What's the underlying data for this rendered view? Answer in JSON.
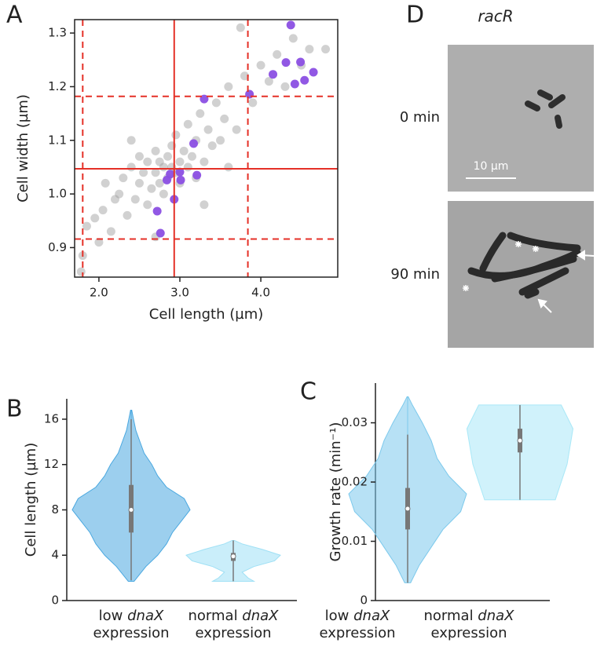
{
  "chart_data": [
    {
      "type": "scatter",
      "panel_label": "A",
      "xlabel": "Cell length (µm)",
      "ylabel": "Cell width (µm)",
      "xlim": [
        1.7,
        4.95
      ],
      "ylim": [
        0.845,
        1.325
      ],
      "xticks": [
        {
          "value": 2,
          "label": "2.0"
        },
        {
          "value": 3,
          "label": "3.0"
        },
        {
          "value": 4,
          "label": "4.0"
        }
      ],
      "yticks": [
        0.9,
        {
          "value": 1,
          "label": "1.0"
        },
        1.1,
        1.2,
        1.3
      ],
      "line_color": "#e53027",
      "vlines": [
        2.93
      ],
      "vlines_dashed": [
        1.8,
        3.84
      ],
      "hlines": [
        1.047
      ],
      "hlines_dashed": [
        0.916,
        1.182
      ],
      "series": [
        {
          "color": "#9a9a9a",
          "x": [
            1.78,
            1.8,
            1.85,
            1.95,
            2.05,
            2.08,
            2.15,
            2.2,
            2.25,
            2.3,
            2.35,
            2.4,
            2.45,
            2.5,
            2.5,
            2.55,
            2.6,
            2.6,
            2.65,
            2.7,
            2.7,
            2.75,
            2.75,
            2.8,
            2.8,
            2.85,
            2.85,
            2.9,
            2.9,
            2.95,
            2.95,
            3.0,
            3.0,
            3.05,
            3.1,
            3.1,
            3.15,
            3.2,
            3.2,
            3.25,
            3.3,
            3.35,
            3.4,
            3.45,
            3.5,
            3.55,
            3.6,
            3.7,
            3.75,
            3.8,
            3.9,
            4.0,
            4.1,
            4.2,
            4.3,
            4.4,
            4.5,
            4.6,
            4.8,
            2.0,
            2.7,
            3.3,
            2.4,
            3.6
          ],
          "y": [
            0.855,
            0.885,
            0.94,
            0.955,
            0.97,
            1.02,
            0.93,
            0.99,
            1.0,
            1.03,
            0.96,
            1.05,
            0.99,
            1.02,
            1.07,
            1.04,
            0.98,
            1.06,
            1.01,
            1.04,
            1.08,
            1.02,
            1.06,
            1.05,
            1.0,
            1.07,
            1.03,
            1.05,
            1.09,
            1.04,
            1.11,
            1.06,
            1.02,
            1.08,
            1.05,
            1.13,
            1.07,
            1.03,
            1.1,
            1.15,
            1.06,
            1.12,
            1.09,
            1.17,
            1.1,
            1.14,
            1.2,
            1.12,
            1.31,
            1.22,
            1.17,
            1.24,
            1.21,
            1.26,
            1.2,
            1.29,
            1.24,
            1.27,
            1.27,
            0.91,
            0.92,
            0.98,
            1.1,
            1.05
          ]
        },
        {
          "color": "#8b4fe3",
          "x": [
            4.37,
            4.31,
            4.49,
            4.65,
            4.15,
            4.54,
            4.42,
            3.86,
            3.3,
            3.17,
            3.0,
            2.88,
            2.84,
            3.01,
            3.21,
            2.93,
            2.72,
            2.76
          ],
          "y": [
            1.315,
            1.245,
            1.246,
            1.227,
            1.223,
            1.212,
            1.205,
            1.186,
            1.177,
            1.094,
            1.041,
            1.037,
            1.026,
            1.026,
            1.035,
            0.99,
            0.968,
            0.927
          ]
        }
      ]
    },
    {
      "type": "violin",
      "panel_label": "B",
      "ylabel": "Cell length (µm)",
      "italic": "dnaX",
      "categories": [
        "low dnaX expression",
        "normal dnaX expression"
      ],
      "ylim": [
        0,
        17.8
      ],
      "yticks": [
        0,
        4,
        8,
        12,
        16
      ],
      "violins": [
        {
          "color": "#4aa8e0",
          "density_y": [
            1.7,
            3,
            4,
            5,
            6,
            7,
            8,
            9,
            10,
            11,
            12,
            13,
            14,
            15,
            16,
            16.8
          ],
          "density_width": [
            0.05,
            0.25,
            0.45,
            0.6,
            0.7,
            0.85,
            1.0,
            0.9,
            0.6,
            0.45,
            0.35,
            0.22,
            0.15,
            0.08,
            0.04,
            0.01
          ],
          "min": 1.8,
          "q1": 6,
          "median": 8,
          "q3": 10.2,
          "max": 16
        },
        {
          "color": "#9fe0f5",
          "density_y": [
            1.7,
            2.0,
            2.5,
            3,
            3.5,
            4,
            4.5,
            5,
            5.3
          ],
          "density_width": [
            0.35,
            0.25,
            0.15,
            0.35,
            0.7,
            0.8,
            0.5,
            0.15,
            0.02
          ],
          "min": 1.7,
          "q1": 3.5,
          "median": 3.9,
          "q3": 4.2,
          "max": 5.3
        }
      ]
    },
    {
      "type": "violin",
      "panel_label": "C",
      "ylabel": "Growth rate (min⁻¹)",
      "italic": "dnaX",
      "categories": [
        "low dnaX expression",
        "normal dnaX expression"
      ],
      "ylim": [
        0,
        0.0367
      ],
      "yticks": [
        0,
        0.01,
        0.02,
        0.03
      ],
      "violins": [
        {
          "color": "#7cc9ec",
          "density_y": [
            0.003,
            0.006,
            0.009,
            0.012,
            0.015,
            0.018,
            0.021,
            0.024,
            0.027,
            0.03,
            0.033,
            0.0344
          ],
          "density_width": [
            0.05,
            0.2,
            0.4,
            0.6,
            0.9,
            1.0,
            0.7,
            0.5,
            0.4,
            0.25,
            0.08,
            0.01
          ],
          "min": 0.003,
          "q1": 0.012,
          "median": 0.0155,
          "q3": 0.019,
          "max": 0.028
        },
        {
          "color": "#a9e8f7",
          "density_y": [
            0.017,
            0.02,
            0.023,
            0.026,
            0.029,
            0.031,
            0.033
          ],
          "density_width": [
            0.6,
            0.7,
            0.8,
            0.85,
            0.9,
            0.8,
            0.7
          ],
          "min": 0.017,
          "q1": 0.025,
          "median": 0.027,
          "q3": 0.029,
          "max": 0.033
        }
      ]
    }
  ],
  "panel_d": {
    "label": "D",
    "title": "racR",
    "rows": [
      "0 min",
      "90 min"
    ],
    "scale_bar": "10 µm"
  }
}
